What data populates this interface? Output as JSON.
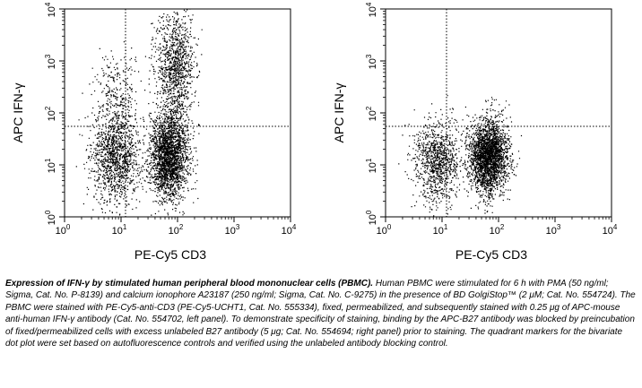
{
  "chart_data": [
    {
      "type": "scatter",
      "panel": "left",
      "xlabel": "PE-Cy5 CD3",
      "ylabel": "APC IFN-γ",
      "xscale": "log",
      "yscale": "log",
      "xlim": [
        1,
        10000
      ],
      "ylim": [
        1,
        10000
      ],
      "x_ticks": [
        "10",
        "10",
        "10",
        "10",
        "10"
      ],
      "x_tick_exponents": [
        "0",
        "1",
        "2",
        "3",
        "4"
      ],
      "y_ticks": [
        "10",
        "10",
        "10",
        "10",
        "10"
      ],
      "y_tick_exponents": [
        "0",
        "1",
        "2",
        "3",
        "4"
      ],
      "quadrant_marker": {
        "x": 12,
        "y": 55
      },
      "populations": [
        {
          "x_center": 8,
          "y_center": 15,
          "x_spread": 0.22,
          "y_spread": 0.45,
          "count": 1300
        },
        {
          "x_center": 70,
          "y_center": 15,
          "x_spread": 0.17,
          "y_spread": 0.42,
          "count": 2400
        },
        {
          "x_center": 90,
          "y_center": 800,
          "x_spread": 0.17,
          "y_spread": 0.55,
          "count": 1100
        },
        {
          "x_center": 8,
          "y_center": 250,
          "x_spread": 0.2,
          "y_spread": 0.4,
          "count": 250
        }
      ]
    },
    {
      "type": "scatter",
      "panel": "right",
      "xlabel": "PE-Cy5 CD3",
      "ylabel": "APC IFN-γ",
      "xscale": "log",
      "yscale": "log",
      "xlim": [
        1,
        10000
      ],
      "ylim": [
        1,
        10000
      ],
      "x_ticks": [
        "10",
        "10",
        "10",
        "10",
        "10"
      ],
      "x_tick_exponents": [
        "0",
        "1",
        "2",
        "3",
        "4"
      ],
      "y_ticks": [
        "10",
        "10",
        "10",
        "10",
        "10"
      ],
      "y_tick_exponents": [
        "0",
        "1",
        "2",
        "3",
        "4"
      ],
      "quadrant_marker": {
        "x": 12,
        "y": 55
      },
      "populations": [
        {
          "x_center": 8,
          "y_center": 12,
          "x_spread": 0.2,
          "y_spread": 0.4,
          "count": 1000
        },
        {
          "x_center": 65,
          "y_center": 15,
          "x_spread": 0.17,
          "y_spread": 0.35,
          "count": 2600
        }
      ]
    }
  ],
  "caption": {
    "title": "Expression of IFN-γ by stimulated human peripheral blood mononuclear cells (PBMC).",
    "body": " Human PBMC were stimulated for 6 h with PMA (50 ng/ml; Sigma, Cat. No. P-8139) and calcium ionophore A23187 (250 ng/ml; Sigma, Cat. No. C-9275) in the presence of BD GolgiStop™ (2 μM; Cat. No. 554724). The PBMC were stained with PE-Cy5-anti-CD3 (PE-Cy5-UCHT1, Cat. No. 555334), fixed, permeabilized, and subsequently stained with 0.25 μg of APC-mouse anti-human IFN-γ antibody (Cat. No. 554702, left panel). To demonstrate specificity of staining, binding by the APC-B27 antibody was blocked by preincubation of fixed/permeabilized cells with excess unlabeled B27 antibody (5 μg; Cat. No. 554694; right panel) prior to staining. The quadrant markers for the bivariate dot plot were set based on autofluorescence controls and verified using the unlabeled antibody blocking control."
  }
}
